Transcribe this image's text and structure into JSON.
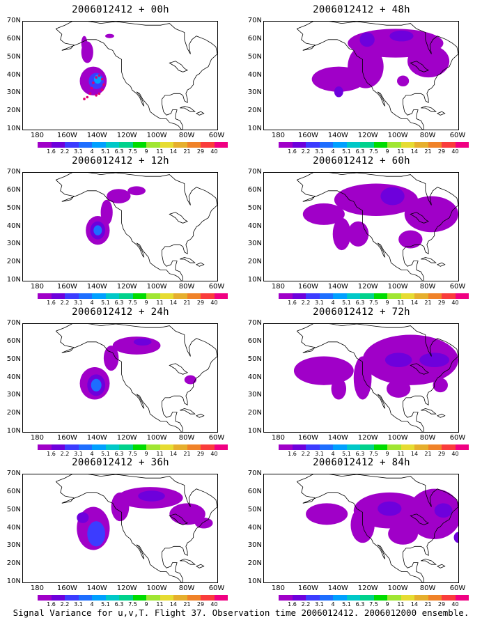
{
  "caption": "Signal Variance for u,v,T. Flight 37. Observation time 2006012412. 2006012000 ensemble.",
  "chart_data": {
    "type": "contour-map",
    "axes": {
      "x_ticks": [
        "180",
        "160W",
        "140W",
        "120W",
        "100W",
        "80W",
        "60W"
      ],
      "x_lon": [
        -180,
        -160,
        -140,
        -120,
        -100,
        -80,
        -60
      ],
      "y_ticks": [
        "70N",
        "60N",
        "50N",
        "40N",
        "30N",
        "20N",
        "10N"
      ],
      "y_lat": [
        70,
        60,
        50,
        40,
        30,
        20,
        10
      ],
      "lon_range": [
        -190,
        -60
      ],
      "lat_range": [
        10,
        70
      ]
    },
    "colorbar": {
      "levels": [
        "1.6",
        "2.2",
        "3.1",
        "4",
        "5.1",
        "6.3",
        "7.5",
        "9",
        "11",
        "14",
        "21",
        "29",
        "40"
      ],
      "colors": [
        "#a000c8",
        "#6e00dc",
        "#3c3cff",
        "#1e6eff",
        "#00a0ff",
        "#00c8c8",
        "#00d28c",
        "#00dc00",
        "#a0e632",
        "#e6dc32",
        "#e6af2d",
        "#f08228",
        "#fa3c3c",
        "#f00082"
      ]
    },
    "panels": [
      {
        "title": "2006012412 + 00h",
        "blobs": [
          {
            "lon": -143,
            "lat": 37,
            "rx": 9,
            "ry": 8,
            "level": 0
          },
          {
            "lon": -141,
            "lat": 37,
            "rx": 5,
            "ry": 4.5,
            "level": 2
          },
          {
            "lon": -140,
            "lat": 38,
            "rx": 2.5,
            "ry": 2.5,
            "level": 4
          },
          {
            "lon": -147,
            "lat": 53,
            "rx": 4,
            "ry": 6,
            "level": 0
          },
          {
            "lon": -149,
            "lat": 58,
            "rx": 2,
            "ry": 4,
            "level": 0
          },
          {
            "lon": -132,
            "lat": 62,
            "rx": 3,
            "ry": 1.2,
            "level": 0
          }
        ],
        "obs_points": [
          {
            "lon": -149,
            "lat": 27
          },
          {
            "lon": -147,
            "lat": 28
          },
          {
            "lon": -145,
            "lat": 30
          },
          {
            "lon": -144,
            "lat": 33
          },
          {
            "lon": -143,
            "lat": 36
          },
          {
            "lon": -141,
            "lat": 39
          },
          {
            "lon": -139,
            "lat": 40
          },
          {
            "lon": -137,
            "lat": 38
          },
          {
            "lon": -136,
            "lat": 35
          },
          {
            "lon": -137,
            "lat": 32
          },
          {
            "lon": -139,
            "lat": 30
          },
          {
            "lon": -141,
            "lat": 29
          }
        ]
      },
      {
        "title": "2006012412 + 12h",
        "blobs": [
          {
            "lon": -140,
            "lat": 38,
            "rx": 8,
            "ry": 8,
            "level": 0
          },
          {
            "lon": -140,
            "lat": 38,
            "rx": 5,
            "ry": 5,
            "level": 1
          },
          {
            "lon": -140,
            "lat": 38,
            "rx": 2.8,
            "ry": 2.8,
            "level": 3
          },
          {
            "lon": -134,
            "lat": 48,
            "rx": 4,
            "ry": 7,
            "level": 0
          },
          {
            "lon": -126,
            "lat": 57,
            "rx": 8,
            "ry": 4,
            "level": 0
          },
          {
            "lon": -114,
            "lat": 60,
            "rx": 6,
            "ry": 2.5,
            "level": 0
          }
        ],
        "obs_points": []
      },
      {
        "title": "2006012412 + 24h",
        "blobs": [
          {
            "lon": -142,
            "lat": 37,
            "rx": 10,
            "ry": 9,
            "level": 0
          },
          {
            "lon": -141,
            "lat": 36,
            "rx": 6,
            "ry": 6,
            "level": 1
          },
          {
            "lon": -141,
            "lat": 36,
            "rx": 3.5,
            "ry": 3.5,
            "level": 3
          },
          {
            "lon": -131,
            "lat": 51,
            "rx": 5,
            "ry": 7,
            "level": 0
          },
          {
            "lon": -114,
            "lat": 58,
            "rx": 16,
            "ry": 5,
            "level": 0
          },
          {
            "lon": -110,
            "lat": 60,
            "rx": 6,
            "ry": 2,
            "level": 1
          },
          {
            "lon": -78,
            "lat": 39,
            "rx": 4,
            "ry": 2.5,
            "level": 0
          }
        ],
        "obs_points": []
      },
      {
        "title": "2006012412 + 36h",
        "blobs": [
          {
            "lon": -143,
            "lat": 40,
            "rx": 11,
            "ry": 12,
            "level": 0
          },
          {
            "lon": -141,
            "lat": 37,
            "rx": 6,
            "ry": 7,
            "level": 2
          },
          {
            "lon": -150,
            "lat": 46,
            "rx": 4,
            "ry": 3,
            "level": 1
          },
          {
            "lon": -125,
            "lat": 52,
            "rx": 6,
            "ry": 8,
            "level": 0
          },
          {
            "lon": -105,
            "lat": 57,
            "rx": 22,
            "ry": 6,
            "level": 0
          },
          {
            "lon": -104,
            "lat": 58,
            "rx": 9,
            "ry": 3,
            "level": 1
          },
          {
            "lon": -80,
            "lat": 48,
            "rx": 12,
            "ry": 6,
            "level": 0
          },
          {
            "lon": -69,
            "lat": 43,
            "rx": 6,
            "ry": 3,
            "level": 0
          }
        ],
        "obs_points": []
      },
      {
        "title": "2006012412 + 48h",
        "blobs": [
          {
            "lon": -140,
            "lat": 38,
            "rx": 18,
            "ry": 7,
            "level": 0
          },
          {
            "lon": -140,
            "lat": 31,
            "rx": 3,
            "ry": 3,
            "level": 1
          },
          {
            "lon": -122,
            "lat": 45,
            "rx": 12,
            "ry": 12,
            "level": 0
          },
          {
            "lon": -102,
            "lat": 58,
            "rx": 32,
            "ry": 8,
            "level": 0
          },
          {
            "lon": -121,
            "lat": 60,
            "rx": 5,
            "ry": 4,
            "level": 1
          },
          {
            "lon": -98,
            "lat": 62,
            "rx": 8,
            "ry": 3,
            "level": 1
          },
          {
            "lon": -80,
            "lat": 48,
            "rx": 14,
            "ry": 9,
            "level": 0
          },
          {
            "lon": -97,
            "lat": 37,
            "rx": 4,
            "ry": 3,
            "level": 0
          }
        ],
        "obs_points": []
      },
      {
        "title": "2006012412 + 60h",
        "blobs": [
          {
            "lon": -150,
            "lat": 47,
            "rx": 14,
            "ry": 6,
            "level": 0
          },
          {
            "lon": -138,
            "lat": 36,
            "rx": 6,
            "ry": 9,
            "level": 0
          },
          {
            "lon": -127,
            "lat": 36,
            "rx": 7,
            "ry": 7,
            "level": 0
          },
          {
            "lon": -115,
            "lat": 55,
            "rx": 28,
            "ry": 9,
            "level": 0
          },
          {
            "lon": -104,
            "lat": 57,
            "rx": 8,
            "ry": 5,
            "level": 1
          },
          {
            "lon": -78,
            "lat": 47,
            "rx": 18,
            "ry": 10,
            "level": 0
          },
          {
            "lon": -92,
            "lat": 33,
            "rx": 8,
            "ry": 5,
            "level": 0
          }
        ],
        "obs_points": []
      },
      {
        "title": "2006012412 + 72h",
        "blobs": [
          {
            "lon": -150,
            "lat": 44,
            "rx": 20,
            "ry": 8,
            "level": 0
          },
          {
            "lon": -140,
            "lat": 34,
            "rx": 5,
            "ry": 6,
            "level": 0
          },
          {
            "lon": -124,
            "lat": 40,
            "rx": 6,
            "ry": 12,
            "level": 0
          },
          {
            "lon": -92,
            "lat": 50,
            "rx": 32,
            "ry": 14,
            "level": 0
          },
          {
            "lon": -100,
            "lat": 50,
            "rx": 9,
            "ry": 4,
            "level": 1
          },
          {
            "lon": -76,
            "lat": 50,
            "rx": 10,
            "ry": 4,
            "level": 1
          },
          {
            "lon": -100,
            "lat": 34,
            "rx": 8,
            "ry": 5,
            "level": 0
          },
          {
            "lon": -72,
            "lat": 36,
            "rx": 5,
            "ry": 4,
            "level": 0
          }
        ],
        "obs_points": []
      },
      {
        "title": "2006012412 + 84h",
        "blobs": [
          {
            "lon": -148,
            "lat": 48,
            "rx": 14,
            "ry": 6,
            "level": 0
          },
          {
            "lon": -124,
            "lat": 42,
            "rx": 8,
            "ry": 10,
            "level": 0
          },
          {
            "lon": -106,
            "lat": 50,
            "rx": 24,
            "ry": 10,
            "level": 0
          },
          {
            "lon": -97,
            "lat": 37,
            "rx": 10,
            "ry": 6,
            "level": 0
          },
          {
            "lon": -76,
            "lat": 48,
            "rx": 18,
            "ry": 14,
            "level": 0
          },
          {
            "lon": -106,
            "lat": 51,
            "rx": 8,
            "ry": 4,
            "level": 1
          },
          {
            "lon": -70,
            "lat": 50,
            "rx": 6,
            "ry": 4,
            "level": 1
          },
          {
            "lon": -60,
            "lat": 35,
            "rx": 3,
            "ry": 3,
            "level": 1
          }
        ],
        "obs_points": []
      }
    ]
  }
}
